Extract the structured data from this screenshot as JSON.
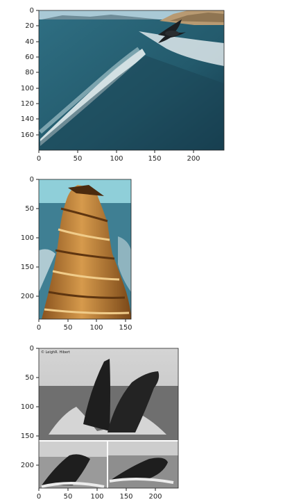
{
  "figure": {
    "panels": [
      {
        "id": "ocean-wave",
        "subject": "ocean-wave-with-bird",
        "x_ticks": [
          "0",
          "50",
          "100",
          "150",
          "200"
        ],
        "y_ticks": [
          "0",
          "20",
          "40",
          "60",
          "80",
          "100",
          "120",
          "140",
          "160"
        ],
        "x_range": [
          0,
          240
        ],
        "y_range": [
          0,
          180
        ],
        "colors": {
          "sea": "#2f6f83",
          "deep": "#14384a",
          "sky": "#a9c9d6",
          "foam": "#e6eef0"
        }
      },
      {
        "id": "sandstone-pillar",
        "subject": "layered-sandstone-rock",
        "x_ticks": [
          "0",
          "50",
          "100",
          "150"
        ],
        "y_ticks": [
          "0",
          "50",
          "100",
          "150",
          "200"
        ],
        "x_range": [
          0,
          160
        ],
        "y_range": [
          0,
          240
        ],
        "colors": {
          "sky": "#8fcfd9",
          "rock": "#c98a3f",
          "dark": "#6b3f14",
          "light": "#e7c080"
        }
      },
      {
        "id": "breaching-whales",
        "subject": "humpback-whales-breaching",
        "watermark": "© LeighR. Hibert",
        "x_ticks": [
          "0",
          "50",
          "100",
          "150",
          "200"
        ],
        "y_ticks": [
          "0",
          "50",
          "100",
          "150",
          "200"
        ],
        "x_range": [
          0,
          240
        ],
        "y_range": [
          0,
          240
        ],
        "colors": {
          "sky": "#c9c9c9",
          "water": "#6f6f6f",
          "whale": "#1e1e1e",
          "splash": "#e8e8e8"
        }
      }
    ]
  }
}
